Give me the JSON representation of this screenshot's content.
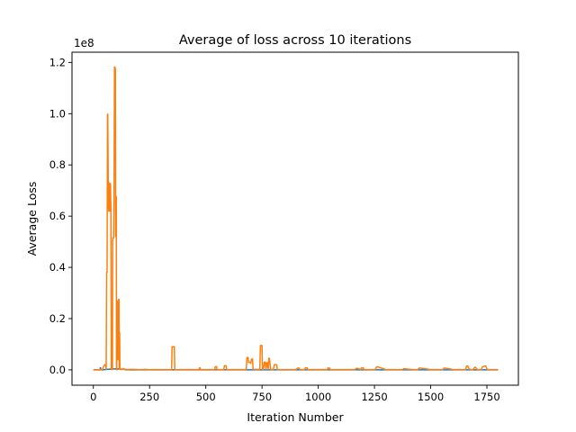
{
  "chart_data": {
    "type": "line",
    "title": "Average of loss across 10 iterations",
    "xlabel": "Iteration Number",
    "ylabel": "Average Loss",
    "y_multiplier_label": "1e8",
    "xlim": [
      -95,
      1890
    ],
    "ylim": [
      -0.06,
      1.24
    ],
    "y_scale": 100000000,
    "x_ticks": [
      0,
      250,
      500,
      750,
      1000,
      1250,
      1500,
      1750
    ],
    "x_tick_labels": [
      "0",
      "250",
      "500",
      "750",
      "1000",
      "1250",
      "1500",
      "1750"
    ],
    "y_ticks": [
      0.0,
      0.2,
      0.4,
      0.6,
      0.8,
      1.0,
      1.2
    ],
    "y_tick_labels": [
      "0.0",
      "0.2",
      "0.4",
      "0.6",
      "0.8",
      "1.0",
      "1.2"
    ],
    "grid": false,
    "series": [
      {
        "color": "#1f77b4",
        "x": [
          0,
          30,
          31,
          32,
          33,
          40,
          60,
          80,
          100,
          120,
          140,
          141,
          142,
          143,
          160,
          300,
          600,
          900,
          1200,
          1500,
          1800
        ],
        "y": [
          0,
          0,
          0.008,
          0.008,
          0,
          0,
          0.002,
          0.003,
          0.004,
          0.003,
          0.002,
          0.001,
          0.001,
          0,
          0,
          0,
          0,
          0,
          0,
          0,
          0
        ]
      },
      {
        "color": "#ff7f0e",
        "x": [
          0,
          30,
          31,
          32,
          33,
          34,
          40,
          50,
          55,
          57,
          59,
          60,
          61,
          63,
          64,
          66,
          68,
          70,
          72,
          74,
          76,
          78,
          80,
          82,
          85,
          86,
          88,
          90,
          92,
          94,
          96,
          97,
          98,
          99,
          100,
          101,
          102,
          103,
          104,
          105,
          106,
          107,
          108,
          109,
          110,
          111,
          112,
          113,
          114,
          115,
          116,
          117,
          118,
          120,
          122,
          123,
          124,
          126,
          128,
          130,
          132,
          134,
          135,
          137,
          138,
          140,
          141,
          142,
          144,
          146,
          148,
          150,
          155,
          160,
          170,
          180,
          200,
          210,
          230,
          240,
          260,
          300,
          348,
          350,
          352,
          358,
          360,
          362,
          380,
          420,
          470,
          472,
          474,
          476,
          480,
          520,
          540,
          542,
          548,
          550,
          570,
          580,
          583,
          590,
          593,
          600,
          640,
          670,
          680,
          683,
          688,
          690,
          695,
          700,
          703,
          708,
          710,
          720,
          740,
          743,
          745,
          748,
          750,
          752,
          756,
          760,
          763,
          768,
          770,
          773,
          778,
          780,
          783,
          788,
          790,
          800,
          805,
          808,
          815,
          818,
          822,
          850,
          900,
          910,
          913,
          920,
          940,
          943,
          950,
          953,
          960,
          1000,
          1040,
          1043,
          1050,
          1053,
          1100,
          1160,
          1163,
          1170,
          1173,
          1190,
          1193,
          1200,
          1203,
          1250,
          1253,
          1260,
          1263,
          1300,
          1370,
          1373,
          1380,
          1383,
          1420,
          1440,
          1443,
          1450,
          1453,
          1500,
          1550,
          1553,
          1560,
          1563,
          1600,
          1650,
          1655,
          1660,
          1665,
          1670,
          1680,
          1690,
          1695,
          1700,
          1705,
          1720,
          1725,
          1730,
          1735,
          1740,
          1745,
          1750,
          1755,
          1760,
          1800
        ],
        "y": [
          0,
          0,
          0.001,
          0.001,
          0,
          0,
          0.002,
          0.02,
          0.02,
          0.003,
          0.38,
          0.38,
          0.38,
          0.998,
          0.998,
          0.75,
          0.62,
          0.73,
          0.62,
          0.727,
          0.727,
          0.63,
          0.0,
          0.002,
          0.003,
          0.515,
          0.515,
          0.515,
          0.68,
          1.182,
          1.182,
          1.175,
          1.175,
          0.52,
          0.52,
          0.676,
          0.676,
          0.0,
          0.0,
          0.267,
          0.267,
          0.266,
          0.04,
          0.27,
          0.27,
          0.04,
          0.271,
          0.275,
          0.275,
          0.002,
          0.145,
          0.142,
          0.003,
          0.002,
          0.002,
          0.003,
          0.004,
          0.002,
          0.001,
          0.003,
          0.004,
          0.003,
          0.003,
          0.002,
          0.004,
          0.003,
          0.002,
          0.002,
          0.001,
          0.001,
          0.002,
          0.001,
          0.001,
          0.002,
          0.002,
          0.002,
          0.001,
          0.001,
          0.002,
          0.001,
          0.001,
          0.001,
          0.001,
          0.09,
          0.09,
          0.09,
          0.09,
          0.001,
          0.001,
          0.001,
          0.001,
          0.008,
          0.008,
          0.001,
          0.001,
          0.001,
          0.001,
          0.012,
          0.012,
          0.001,
          0.001,
          0.001,
          0.016,
          0.016,
          0.001,
          0.001,
          0.001,
          0.001,
          0.001,
          0.048,
          0.048,
          0.03,
          0.03,
          0.025,
          0.042,
          0.042,
          0.002,
          0.002,
          0.002,
          0.095,
          0.095,
          0.095,
          0.095,
          0.002,
          0.002,
          0.03,
          0.03,
          0.002,
          0.028,
          0.028,
          0.002,
          0.045,
          0.045,
          0.002,
          0.002,
          0.001,
          0.02,
          0.02,
          0.02,
          0.001,
          0.001,
          0.001,
          0.001,
          0.007,
          0.007,
          0.001,
          0.001,
          0.008,
          0.008,
          0.001,
          0.001,
          0.001,
          0.001,
          0.007,
          0.007,
          0.001,
          0.001,
          0.001,
          0.001,
          0.006,
          0.006,
          0.001,
          0.008,
          0.008,
          0.001,
          0.001,
          0.001,
          0.012,
          0.012,
          0.001,
          0.001,
          0.001,
          0.004,
          0.004,
          0.001,
          0.001,
          0.001,
          0.007,
          0.007,
          0.001,
          0.001,
          0.001,
          0.007,
          0.007,
          0.001,
          0.001,
          0.001,
          0.015,
          0.015,
          0.003,
          0.001,
          0.002,
          0.01,
          0.01,
          0.002,
          0.001,
          0.001,
          0.012,
          0.012,
          0.015,
          0.015,
          0.003,
          0.001,
          0.001,
          0.001
        ]
      }
    ]
  }
}
